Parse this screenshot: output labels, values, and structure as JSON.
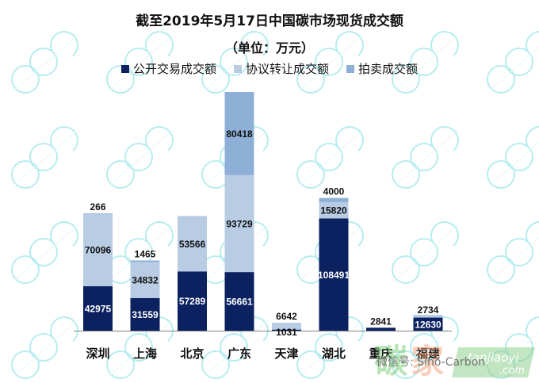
{
  "chart_data": {
    "type": "bar",
    "stacked": true,
    "title": "截至2019年5月17日中国碳市场现货成交额",
    "subtitle": "（单位：万元）",
    "xlabel": "",
    "ylabel": "",
    "grid": false,
    "y_axis_visible": false,
    "legend_position": "top-center",
    "categories": [
      "深圳",
      "上海",
      "北京",
      "广东",
      "天津",
      "湖北",
      "重庆",
      "福建"
    ],
    "series": [
      {
        "name": "公开交易成交额",
        "color": "#0b2160",
        "label_color": "#ffffff",
        "values": [
          42975,
          31559,
          57289,
          56661,
          1031,
          108491,
          2841,
          12630
        ]
      },
      {
        "name": "协议转让成交额",
        "color": "#b8cce4",
        "label_color": "#111111",
        "values": [
          70096,
          34832,
          53566,
          93729,
          6642,
          15820,
          0,
          2734
        ]
      },
      {
        "name": "拍卖成交额",
        "color": "#8eb0d6",
        "label_color": "#111111",
        "values": [
          266,
          1465,
          0,
          80418,
          0,
          4000,
          0,
          0
        ]
      }
    ],
    "data_labels": [
      [
        "42975",
        "31559",
        "57289",
        "56661",
        "1031",
        "108491",
        "2841",
        "12630"
      ],
      [
        "70096",
        "34832",
        "53566",
        "93729",
        "6642",
        "15820",
        "",
        "2734"
      ],
      [
        "266",
        "1465",
        "",
        "80418",
        "",
        "4000",
        "",
        ""
      ]
    ],
    "ylim": [
      0,
      230808
    ]
  },
  "watermark": {
    "brand_text": "微信号: Sino-Carbon",
    "brand_site": "tanjiaoyi",
    "brand_site_suffix": ".com",
    "brand_logo_chars": "碳家"
  }
}
